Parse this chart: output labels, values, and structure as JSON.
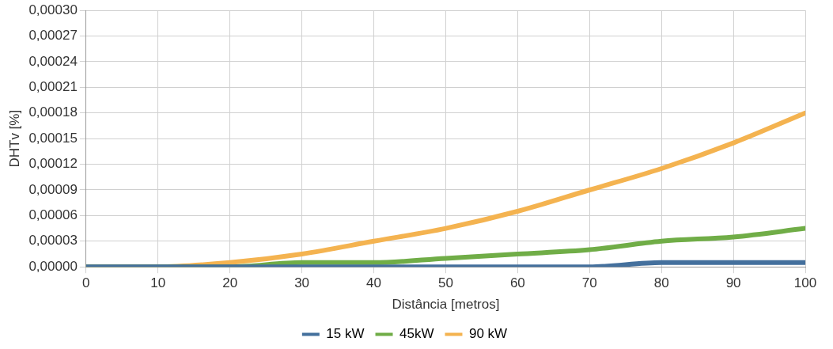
{
  "chart_data": {
    "type": "line",
    "xlabel": "Distância [metros]",
    "ylabel": "DHTv [%]",
    "x": [
      0,
      10,
      20,
      30,
      40,
      50,
      60,
      70,
      80,
      90,
      100
    ],
    "series": [
      {
        "name": "15 kW",
        "color": "#44709d",
        "values": [
          0,
          0,
          0,
          0,
          0,
          0,
          0,
          0,
          5e-06,
          5e-06,
          5e-06
        ]
      },
      {
        "name": "45kW",
        "color": "#70ad47",
        "values": [
          0,
          0,
          0,
          5e-06,
          5e-06,
          1e-05,
          1.5e-05,
          2e-05,
          3e-05,
          3.5e-05,
          4.5e-05
        ]
      },
      {
        "name": "90 kW",
        "color": "#f4b350",
        "values": [
          0,
          0,
          5e-06,
          1.5e-05,
          3e-05,
          4.5e-05,
          6.5e-05,
          9e-05,
          0.000115,
          0.000145,
          0.00018
        ]
      }
    ],
    "xlim": [
      0,
      100
    ],
    "xticks": [
      0,
      10,
      20,
      30,
      40,
      50,
      60,
      70,
      80,
      90,
      100
    ],
    "ylim": [
      0,
      0.0003
    ],
    "yticks": [
      {
        "value": 0,
        "label": "0,00000"
      },
      {
        "value": 3e-05,
        "label": "0,00003"
      },
      {
        "value": 6e-05,
        "label": "0,00006"
      },
      {
        "value": 9e-05,
        "label": "0,00009"
      },
      {
        "value": 0.00012,
        "label": "0,00012"
      },
      {
        "value": 0.00015,
        "label": "0,00015"
      },
      {
        "value": 0.00018,
        "label": "0,00018"
      },
      {
        "value": 0.00021,
        "label": "0,00021"
      },
      {
        "value": 0.00024,
        "label": "0,00024"
      },
      {
        "value": 0.00027,
        "label": "0,00027"
      },
      {
        "value": 0.0003,
        "label": "0,00030"
      }
    ],
    "grid": true,
    "legend": "bottom",
    "marker": "none",
    "line_style": "solid"
  }
}
